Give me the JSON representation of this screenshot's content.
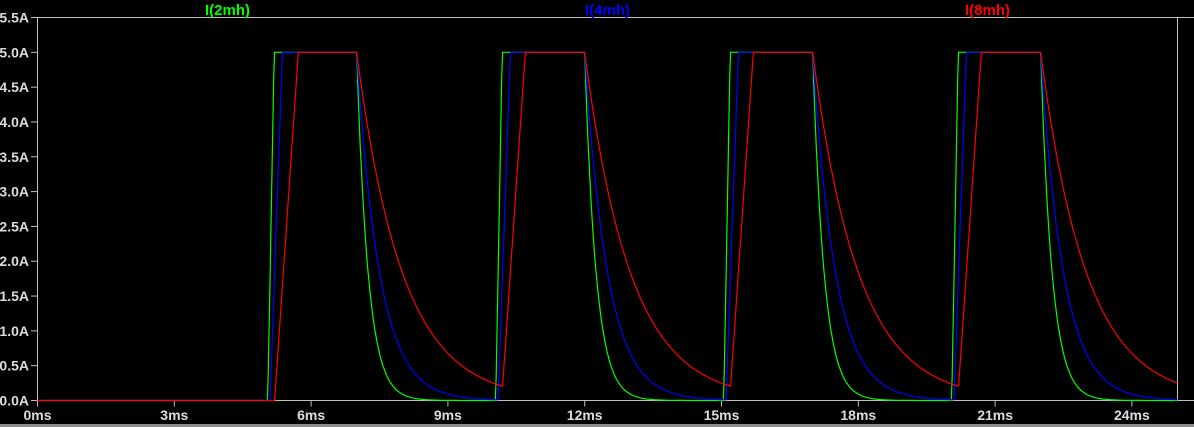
{
  "window": {
    "kind": "waveform-viewer-pane",
    "background": "#000000"
  },
  "layout_colors": {
    "background": "#000000",
    "axis": "#c0c0c0",
    "tick_text": "#dcdcdc",
    "window_edge": "#8c8c8c"
  },
  "chart_data": {
    "type": "line",
    "title": "",
    "xlabel": "",
    "ylabel": "",
    "grid": false,
    "legend_position": "top, one label centered over each third of the plot",
    "x_axis": {
      "unit": "ms",
      "min": 0,
      "max": 25,
      "tick_step": 3,
      "ticks": [
        0,
        3,
        6,
        9,
        12,
        15,
        18,
        21,
        24
      ],
      "tick_labels": [
        "0ms",
        "3ms",
        "6ms",
        "9ms",
        "12ms",
        "15ms",
        "18ms",
        "21ms",
        "24ms"
      ]
    },
    "y_axis": {
      "unit": "A",
      "min": 0,
      "max": 5.5,
      "tick_step": 0.5,
      "ticks": [
        0,
        0.5,
        1,
        1.5,
        2,
        2.5,
        3,
        3.5,
        4,
        4.5,
        5,
        5.5
      ],
      "tick_labels": [
        "0.0A",
        "0.5A",
        "1.0A",
        "1.5A",
        "2.0A",
        "2.5A",
        "3.0A",
        "3.5A",
        "4.0A",
        "4.5A",
        "5.0A",
        "5.5A"
      ]
    },
    "waveform_model": {
      "description": "Inductor currents under a repetitive pulse drive: current is 0A until 5ms, then each 5ms period it ramps linearly up to a 5A flat top, holds until 2ms after the pulse start, then decays exponentially toward 0A. Rise time and decay time constant scale with inductance (2mH:4mH:8mH = 1:2:4).",
      "amplitude_A": 5,
      "first_pulse_start_ms": 5,
      "pulse_width_ms": 2,
      "period_ms": 5,
      "n_pulses": 4,
      "t_end_ms": 25,
      "pulse_start_times_ms": [
        5,
        10,
        15,
        20
      ],
      "pulse_fall_times_ms": [
        7,
        12,
        17,
        22
      ]
    },
    "series": [
      {
        "name": "I(2mh)",
        "color": "#00ff00",
        "rise_delay_ms": 0.05,
        "rise_time_ms": 0.14,
        "decay_tau_ms": 0.25,
        "value_at_flat_top_A": 5,
        "residual_at_next_pulse_A": 0.0
      },
      {
        "name": "I(4mh)",
        "color": "#0000ff",
        "rise_delay_ms": 0.1,
        "rise_time_ms": 0.27,
        "decay_tau_ms": 0.5,
        "value_at_flat_top_A": 5,
        "residual_at_next_pulse_A": 0.01
      },
      {
        "name": "I(8mh)",
        "color": "#ff0000",
        "rise_delay_ms": 0.2,
        "rise_time_ms": 0.52,
        "decay_tau_ms": 1.0,
        "value_at_flat_top_A": 5,
        "residual_at_next_pulse_A": 0.25
      }
    ]
  }
}
